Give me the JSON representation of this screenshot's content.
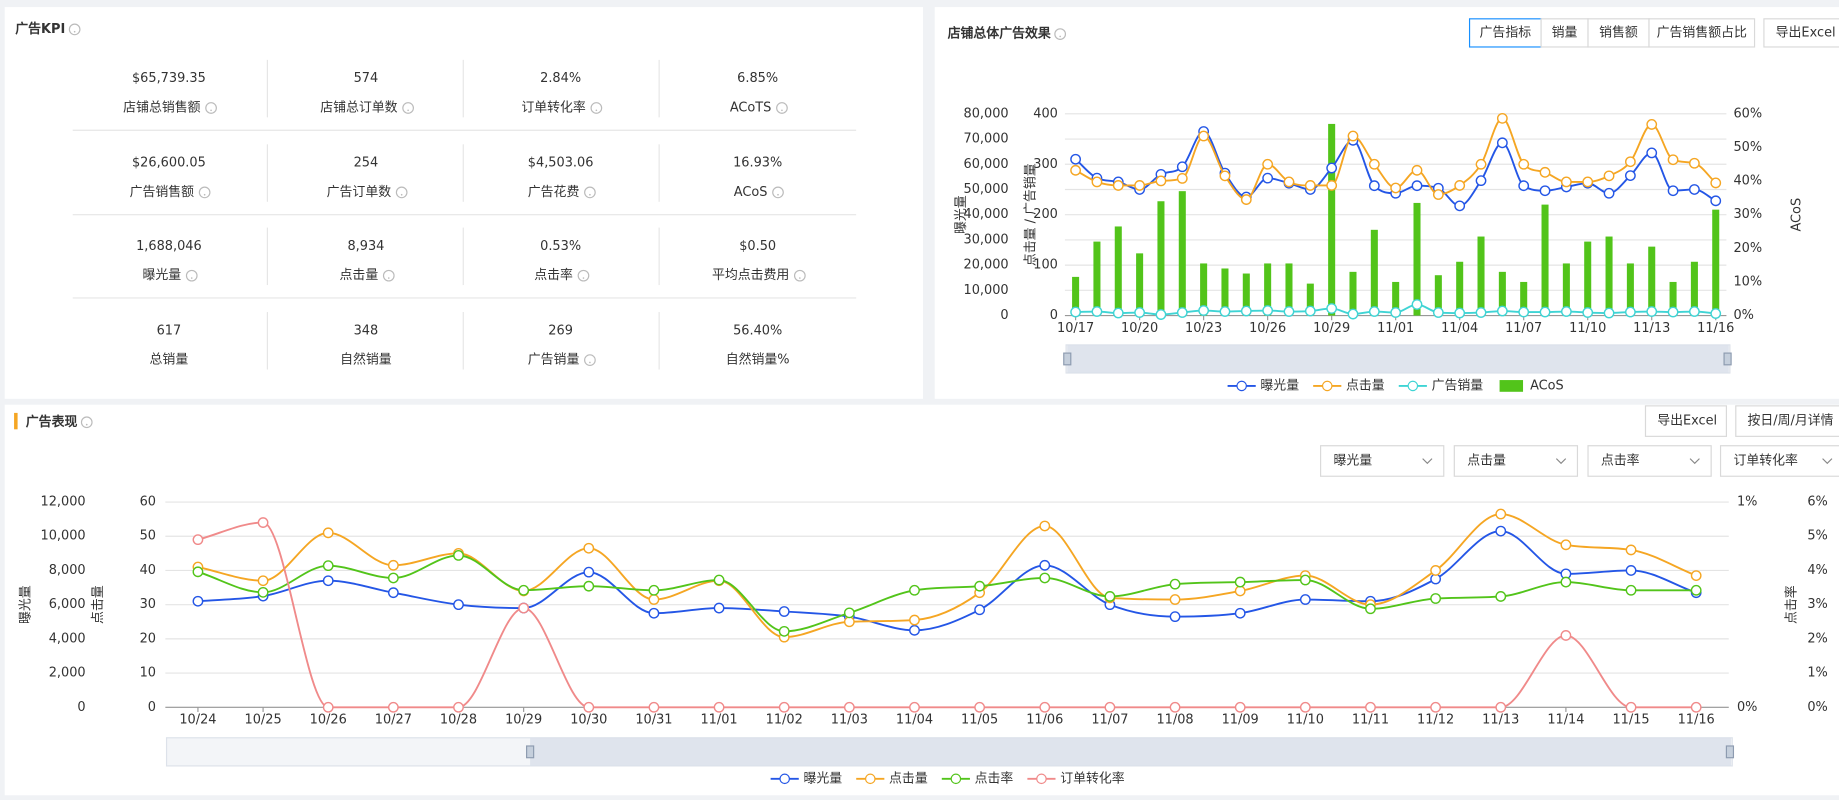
{
  "kpi": {
    "title": "广告KPI",
    "items": [
      {
        "value": "$65,739.35",
        "label": "店铺总销售额",
        "help": true
      },
      {
        "value": "574",
        "label": "店铺总订单数",
        "help": true
      },
      {
        "value": "2.84%",
        "label": "订单转化率",
        "help": true
      },
      {
        "value": "6.85%",
        "label": "ACoTS",
        "help": true
      },
      {
        "value": "$26,600.05",
        "label": "广告销售额",
        "help": true
      },
      {
        "value": "254",
        "label": "广告订单数",
        "help": true
      },
      {
        "value": "$4,503.06",
        "label": "广告花费",
        "help": true
      },
      {
        "value": "16.93%",
        "label": "ACoS",
        "help": true
      },
      {
        "value": "1,688,046",
        "label": "曝光量",
        "help": true
      },
      {
        "value": "8,934",
        "label": "点击量",
        "help": true
      },
      {
        "value": "0.53%",
        "label": "点击率",
        "help": true
      },
      {
        "value": "$0.50",
        "label": "平均点击费用",
        "help": true
      },
      {
        "value": "617",
        "label": "总销量",
        "help": false
      },
      {
        "value": "348",
        "label": "自然销量",
        "help": false
      },
      {
        "value": "269",
        "label": "广告销量",
        "help": true
      },
      {
        "value": "56.40%",
        "label": "自然销量%",
        "help": false
      }
    ]
  },
  "chart_data": [
    {
      "type": "line",
      "title": "店铺总体广告效果",
      "tabs": [
        "广告指标",
        "销量",
        "销售额",
        "广告销售额占比"
      ],
      "active_tab": 0,
      "button": "导出Excel",
      "categories": [
        "10/17",
        null,
        null,
        "10/20",
        null,
        null,
        "10/23",
        null,
        null,
        "10/26",
        null,
        null,
        "10/29",
        null,
        null,
        "11/01",
        null,
        null,
        "11/04",
        null,
        null,
        "11/07",
        null,
        null,
        "11/10",
        null,
        null,
        "11/13",
        null,
        null,
        "11/16"
      ],
      "ylabel": "曝光量",
      "y2label": "点击量 / 广告销量",
      "y3label": "ACoS",
      "ylim": [
        0,
        80000
      ],
      "yticks": [
        0,
        {
          "value": 10000,
          "label": "10,000"
        },
        {
          "value": 20000,
          "label": "20,000"
        },
        {
          "value": 30000,
          "label": "30,000"
        },
        {
          "value": 40000,
          "label": "40,000"
        },
        {
          "value": 50000,
          "label": "50,000"
        },
        {
          "value": 60000,
          "label": "60,000"
        },
        {
          "value": 70000,
          "label": "70,000"
        },
        {
          "value": 80000,
          "label": "80,000"
        }
      ],
      "y2lim": [
        0,
        400
      ],
      "y2ticks": [
        0,
        100,
        200,
        300,
        400
      ],
      "y3lim": [
        0,
        60
      ],
      "y3ticks": [
        {
          "value": 0,
          "label": "0%"
        },
        {
          "value": 10,
          "label": "10%"
        },
        {
          "value": 20,
          "label": "20%"
        },
        {
          "value": 30,
          "label": "30%"
        },
        {
          "value": 40,
          "label": "40%"
        },
        {
          "value": 50,
          "label": "50%"
        },
        {
          "value": 60,
          "label": "60%"
        }
      ],
      "grid": true,
      "legend": "bottom",
      "series": [
        {
          "name": "曝光量",
          "type": "line",
          "axis": "y",
          "color": "#2456e6",
          "values": [
            62000,
            54500,
            53000,
            50000,
            56000,
            59000,
            73000,
            56500,
            47000,
            54500,
            52500,
            50000,
            58500,
            69500,
            51500,
            48500,
            51500,
            50500,
            43500,
            53500,
            68500,
            51500,
            49500,
            51000,
            52500,
            48500,
            55500,
            64500,
            49500,
            50000,
            45500
          ]
        },
        {
          "name": "点击量",
          "type": "line",
          "axis": "y2",
          "color": "#f5a623",
          "values": [
            288,
            265,
            258,
            258,
            267,
            272,
            356,
            277,
            230,
            300,
            265,
            258,
            258,
            356,
            300,
            253,
            288,
            240,
            258,
            300,
            391,
            300,
            284,
            265,
            265,
            277,
            305,
            379,
            309,
            302,
            263
          ]
        },
        {
          "name": "广告销量",
          "type": "line",
          "axis": "y2",
          "color": "#3fd4d4",
          "values": [
            7,
            8,
            5,
            6,
            2,
            6,
            10,
            8,
            9,
            10,
            8,
            9,
            14,
            3,
            8,
            6,
            22,
            6,
            5,
            6,
            9,
            7,
            7,
            8,
            6,
            5,
            7,
            8,
            7,
            8,
            4
          ]
        },
        {
          "name": "ACoS",
          "type": "bar",
          "axis": "y3",
          "color": "#52c41a",
          "values": [
            11.5,
            22,
            26.5,
            18.5,
            34,
            37,
            15.5,
            14,
            12.5,
            15.5,
            15.5,
            9.5,
            57,
            13,
            25.5,
            10,
            33.5,
            12,
            16,
            23.5,
            13,
            10,
            33,
            15.5,
            22,
            23.5,
            15.5,
            20.5,
            10,
            16,
            31.5
          ]
        }
      ]
    },
    {
      "type": "line",
      "title": "广告表现",
      "buttons": [
        "导出Excel",
        "按日/周/月详情"
      ],
      "selectors": [
        "曝光量",
        "点击量",
        "点击率",
        "订单转化率"
      ],
      "categories": [
        "10/24",
        "10/25",
        "10/26",
        "10/27",
        "10/28",
        "10/29",
        "10/30",
        "10/31",
        "11/01",
        "11/02",
        "11/03",
        "11/04",
        "11/05",
        "11/06",
        "11/07",
        "11/08",
        "11/09",
        "11/10",
        "11/11",
        "11/12",
        "11/13",
        "11/14",
        "11/15",
        "11/16"
      ],
      "ylabel": "曝光量",
      "y2label": "点击量",
      "y3label": "点击率",
      "ylim": [
        0,
        12000
      ],
      "yticks": [
        0,
        {
          "value": 2000,
          "label": "2,000"
        },
        {
          "value": 4000,
          "label": "4,000"
        },
        {
          "value": 6000,
          "label": "6,000"
        },
        {
          "value": 8000,
          "label": "8,000"
        },
        {
          "value": 10000,
          "label": "10,000"
        },
        {
          "value": 12000,
          "label": "12,000"
        }
      ],
      "y2lim": [
        0,
        60
      ],
      "y2ticks": [
        0,
        10,
        20,
        30,
        40,
        50,
        60
      ],
      "y3lim": [
        0,
        1
      ],
      "y3ticks": [
        {
          "value": 0,
          "label": "0%"
        },
        {
          "value": 1,
          "label": "1%"
        }
      ],
      "y4lim": [
        0,
        6
      ],
      "y4ticks": [
        {
          "value": 0,
          "label": "0%"
        },
        {
          "value": 1,
          "label": "1%"
        },
        {
          "value": 2,
          "label": "2%"
        },
        {
          "value": 3,
          "label": "3%"
        },
        {
          "value": 4,
          "label": "4%"
        },
        {
          "value": 5,
          "label": "5%"
        },
        {
          "value": 6,
          "label": "6%"
        }
      ],
      "grid": true,
      "legend": "bottom",
      "series": [
        {
          "name": "曝光量",
          "type": "line",
          "axis": "y",
          "color": "#2456e6",
          "values": [
            6200,
            6500,
            7400,
            6700,
            6000,
            5800,
            7900,
            5500,
            5800,
            5600,
            5300,
            4500,
            5700,
            8300,
            6000,
            5300,
            5500,
            6300,
            6200,
            7500,
            10300,
            7800,
            8000,
            6700
          ]
        },
        {
          "name": "点击量",
          "type": "line",
          "axis": "y2",
          "color": "#f5a623",
          "values": [
            41,
            37,
            51,
            41.5,
            45,
            34,
            46.5,
            31.5,
            37,
            20.5,
            25,
            25.5,
            33.5,
            53,
            32,
            31.5,
            34,
            38.5,
            30,
            40,
            56.5,
            47.5,
            46,
            38.5
          ]
        },
        {
          "name": "点击率",
          "type": "line",
          "axis": "y3",
          "color": "#52c41a",
          "values": [
            0.66,
            0.56,
            0.69,
            0.63,
            0.74,
            0.57,
            0.59,
            0.57,
            0.62,
            0.37,
            0.46,
            0.57,
            0.59,
            0.63,
            0.54,
            0.6,
            0.61,
            0.62,
            0.48,
            0.53,
            0.54,
            0.61,
            0.57,
            0.57
          ]
        },
        {
          "name": "订单转化率",
          "type": "line",
          "axis": "y4",
          "color": "#f08a8a",
          "values": [
            4.9,
            5.4,
            0,
            0,
            0,
            2.9,
            0,
            0,
            0,
            0,
            0,
            0,
            0,
            0,
            0,
            0,
            0,
            0,
            0,
            0,
            0,
            2.1,
            0,
            0
          ]
        }
      ]
    }
  ]
}
